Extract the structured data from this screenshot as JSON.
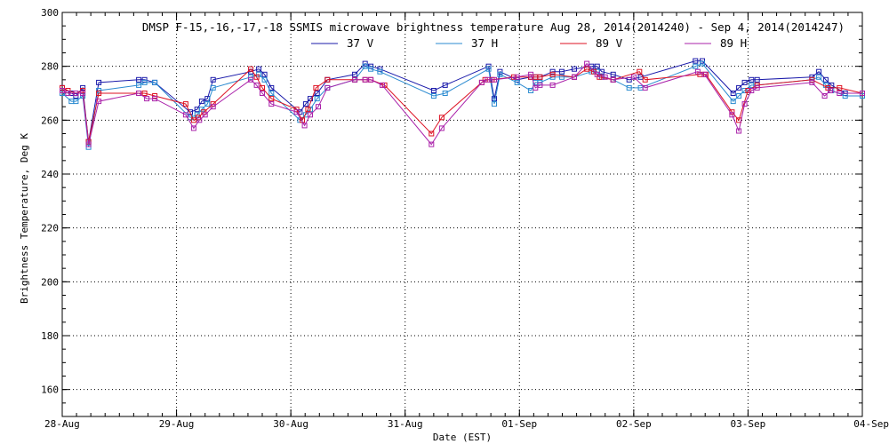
{
  "chart_data": {
    "type": "line",
    "title": "DMSP F-15,-16,-17,-18 SSMIS microwave brightness temperature Aug 28, 2014(2014240) - Sep  4, 2014(2014247)",
    "xlabel": "Date (EST)",
    "ylabel": "Brightness Temperature, Deg K",
    "xlim": [
      0,
      7
    ],
    "ylim": [
      150,
      300
    ],
    "yticks": [
      160,
      180,
      200,
      220,
      240,
      260,
      280,
      300
    ],
    "xtick_labels": [
      "28-Aug",
      "29-Aug",
      "30-Aug",
      "31-Aug",
      "01-Sep",
      "02-Sep",
      "03-Sep",
      "04-Sep"
    ],
    "grid": true,
    "series": [
      {
        "name": "37 V",
        "color": "#1a1aaa",
        "x": [
          0.0,
          0.08,
          0.12,
          0.18,
          0.23,
          0.32,
          0.67,
          0.72,
          0.81,
          1.12,
          1.18,
          1.22,
          1.27,
          1.32,
          1.65,
          1.72,
          1.77,
          1.83,
          2.08,
          2.13,
          2.17,
          2.23,
          2.32,
          2.56,
          2.65,
          2.7,
          2.78,
          3.25,
          3.35,
          3.73,
          3.78,
          3.83,
          3.98,
          4.1,
          4.14,
          4.18,
          4.29,
          4.37,
          4.48,
          4.63,
          4.68,
          4.72,
          4.82,
          4.96,
          5.06,
          5.54,
          5.6,
          5.87,
          5.92,
          5.97,
          6.03,
          6.08,
          6.56,
          6.62,
          6.68,
          6.73,
          6.85,
          7.0
        ],
        "y": [
          272,
          270,
          269,
          272,
          252,
          274,
          275,
          275,
          274,
          263,
          264,
          267,
          268,
          275,
          278,
          279,
          277,
          272,
          263,
          266,
          268,
          270,
          275,
          277,
          281,
          280,
          279,
          271,
          273,
          280,
          268,
          278,
          275,
          276,
          276,
          276,
          278,
          278,
          279,
          280,
          280,
          278,
          277,
          275,
          276,
          282,
          282,
          270,
          272,
          274,
          275,
          275,
          276,
          278,
          275,
          273,
          270,
          270
        ]
      },
      {
        "name": "37 H",
        "color": "#2a8ad0",
        "x": [
          0.0,
          0.08,
          0.12,
          0.18,
          0.23,
          0.32,
          0.67,
          0.72,
          0.81,
          1.12,
          1.18,
          1.22,
          1.27,
          1.32,
          1.65,
          1.72,
          1.77,
          1.83,
          2.08,
          2.13,
          2.17,
          2.23,
          2.32,
          2.56,
          2.65,
          2.7,
          2.78,
          3.25,
          3.35,
          3.73,
          3.78,
          3.83,
          3.98,
          4.1,
          4.14,
          4.18,
          4.29,
          4.37,
          4.48,
          4.63,
          4.68,
          4.72,
          4.82,
          4.96,
          5.06,
          5.54,
          5.6,
          5.87,
          5.92,
          5.97,
          6.03,
          6.08,
          6.56,
          6.62,
          6.68,
          6.73,
          6.85,
          7.0
        ],
        "y": [
          270,
          267,
          267,
          269,
          250,
          271,
          273,
          274,
          274,
          261,
          262,
          264,
          266,
          272,
          276,
          277,
          275,
          270,
          260,
          262,
          264,
          268,
          272,
          275,
          280,
          279,
          278,
          269,
          270,
          279,
          266,
          277,
          274,
          271,
          274,
          274,
          276,
          276,
          276,
          278,
          278,
          276,
          275,
          272,
          272,
          280,
          281,
          267,
          269,
          271,
          273,
          273,
          275,
          276,
          273,
          271,
          269,
          269
        ]
      },
      {
        "name": "89 V",
        "color": "#dd1122",
        "x": [
          0.0,
          0.05,
          0.12,
          0.18,
          0.23,
          0.32,
          0.67,
          0.72,
          0.81,
          1.08,
          1.15,
          1.19,
          1.24,
          1.32,
          1.65,
          1.7,
          1.75,
          1.83,
          2.05,
          2.1,
          2.15,
          2.22,
          2.32,
          2.56,
          2.65,
          2.7,
          2.82,
          3.23,
          3.32,
          3.67,
          3.7,
          3.76,
          3.95,
          4.1,
          4.14,
          4.18,
          4.29,
          4.48,
          4.59,
          4.65,
          4.7,
          4.82,
          5.05,
          5.1,
          5.58,
          5.63,
          5.86,
          5.92,
          6.0,
          6.08,
          6.56,
          6.7,
          6.8,
          7.0
        ],
        "y": [
          272,
          271,
          270,
          271,
          252,
          270,
          270,
          270,
          269,
          266,
          260,
          261,
          263,
          266,
          279,
          276,
          272,
          268,
          264,
          260,
          264,
          272,
          275,
          275,
          275,
          275,
          273,
          255,
          261,
          274,
          275,
          275,
          276,
          276,
          276,
          276,
          277,
          276,
          279,
          278,
          276,
          275,
          278,
          275,
          277,
          277,
          263,
          260,
          271,
          273,
          275,
          272,
          272,
          270
        ]
      },
      {
        "name": "89 H",
        "color": "#aa22aa",
        "x": [
          0.0,
          0.05,
          0.12,
          0.18,
          0.23,
          0.32,
          0.67,
          0.74,
          0.81,
          1.08,
          1.15,
          1.2,
          1.25,
          1.32,
          1.65,
          1.7,
          1.75,
          1.83,
          2.05,
          2.12,
          2.17,
          2.24,
          2.32,
          2.56,
          2.65,
          2.7,
          2.8,
          3.23,
          3.32,
          3.67,
          3.72,
          3.78,
          3.98,
          4.1,
          4.14,
          4.18,
          4.29,
          4.48,
          4.59,
          4.68,
          4.75,
          4.82,
          5.0,
          5.1,
          5.56,
          5.62,
          5.86,
          5.92,
          5.97,
          6.03,
          6.08,
          6.56,
          6.67,
          6.72,
          6.8,
          7.0
        ],
        "y": [
          271,
          270,
          270,
          270,
          251,
          267,
          270,
          268,
          268,
          262,
          257,
          260,
          262,
          265,
          275,
          273,
          270,
          266,
          263,
          258,
          262,
          265,
          272,
          275,
          275,
          275,
          273,
          251,
          257,
          274,
          275,
          275,
          276,
          277,
          272,
          273,
          273,
          276,
          281,
          277,
          276,
          275,
          276,
          272,
          278,
          277,
          262,
          256,
          266,
          271,
          272,
          274,
          269,
          271,
          270,
          270
        ]
      }
    ]
  }
}
